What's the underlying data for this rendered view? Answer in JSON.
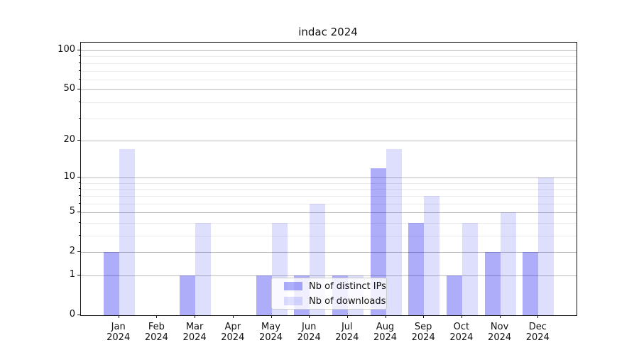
{
  "title": "indac 2024",
  "chart_data": {
    "type": "bar",
    "categories": [
      "Jan 2024",
      "Feb 2024",
      "Mar 2024",
      "Apr 2024",
      "May 2024",
      "Jun 2024",
      "Jul 2024",
      "Aug 2024",
      "Sep 2024",
      "Oct 2024",
      "Nov 2024",
      "Dec 2024"
    ],
    "series": [
      {
        "name": "Nb of distinct IPs",
        "color": "rgba(0,0,240,0.32)",
        "values": [
          2,
          0,
          1,
          0,
          1,
          1,
          1,
          12,
          4,
          1,
          2,
          2
        ]
      },
      {
        "name": "Nb of downloads",
        "color": "rgba(0,0,240,0.13)",
        "values": [
          17,
          0,
          4,
          0,
          4,
          6,
          1,
          17,
          7,
          4,
          5,
          10
        ]
      }
    ],
    "title": "indac 2024",
    "xlabel": "",
    "ylabel": "",
    "y_scale": "log10(1+y)",
    "ylim": [
      0,
      115
    ],
    "y_major_ticks": [
      0,
      1,
      2,
      5,
      10,
      20,
      50,
      100
    ],
    "y_minor_ticks": [
      3,
      4,
      6,
      7,
      8,
      9,
      30,
      40,
      60,
      70,
      80,
      90
    ],
    "grid": "horizontal, major and minor, no vertical gridlines",
    "legend_position": "inside bottom-center"
  },
  "x_axis": {
    "months": [
      "Jan",
      "Feb",
      "Mar",
      "Apr",
      "May",
      "Jun",
      "Jul",
      "Aug",
      "Sep",
      "Oct",
      "Nov",
      "Dec"
    ],
    "year": "2024"
  },
  "legend": {
    "items": [
      {
        "label": "Nb of distinct IPs",
        "color": "rgba(0,0,240,0.32)"
      },
      {
        "label": "Nb of downloads",
        "color": "rgba(0,0,240,0.13)"
      }
    ]
  },
  "colors": {
    "distinct_ips_bar": "rgba(0,0,240,0.32)",
    "downloads_bar": "rgba(0,0,240,0.13)",
    "major_grid": "#bcbcbc",
    "minor_grid": "#ebebeb",
    "spine": "#111111",
    "background": "#ffffff"
  }
}
